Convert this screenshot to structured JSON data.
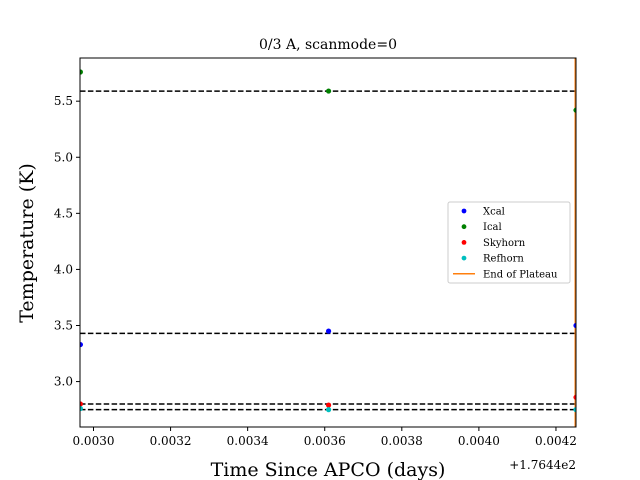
{
  "chart_data": {
    "type": "scatter",
    "title": "0/3 A, scanmode=0",
    "xlabel": "Time Since APCO (days)",
    "ylabel": "Temperature (K)",
    "x_offset_label": "+1.7644e2",
    "xlim": [
      0.002965,
      0.004252
    ],
    "ylim": [
      2.595,
      5.885
    ],
    "x_ticks": [
      0.003,
      0.0032,
      0.0034,
      0.0036,
      0.0038,
      0.004,
      0.0042
    ],
    "x_tick_labels": [
      "0.0030",
      "0.0032",
      "0.0034",
      "0.0036",
      "0.0038",
      "0.0040",
      "0.0042"
    ],
    "y_ticks": [
      3.0,
      3.5,
      4.0,
      4.5,
      5.0,
      5.5
    ],
    "y_tick_labels": [
      "3.0",
      "3.5",
      "4.0",
      "4.5",
      "5.0",
      "5.5"
    ],
    "grid": false,
    "legend_position": "center-right",
    "series": [
      {
        "name": "Xcal",
        "color": "#0000ff",
        "x": [
          0.002966,
          0.00361,
          0.004252
        ],
        "y": [
          3.33,
          3.45,
          3.5
        ]
      },
      {
        "name": "Ical",
        "color": "#008000",
        "x": [
          0.002966,
          0.00361,
          0.004252
        ],
        "y": [
          5.76,
          5.59,
          5.42
        ]
      },
      {
        "name": "Skyhorn",
        "color": "#ff0000",
        "x": [
          0.002966,
          0.00361,
          0.004252
        ],
        "y": [
          2.8,
          2.79,
          2.86
        ]
      },
      {
        "name": "Refhorn",
        "color": "#00bfbf",
        "x": [
          0.002966,
          0.00361,
          0.004252
        ],
        "y": [
          2.76,
          2.75,
          2.75
        ]
      }
    ],
    "hlines": [
      5.59,
      3.43,
      2.8,
      2.75
    ],
    "hline_style": "dashed black",
    "vline": {
      "name": "End of Plateau",
      "color": "#ff7f0e",
      "x": 0.00425
    }
  }
}
